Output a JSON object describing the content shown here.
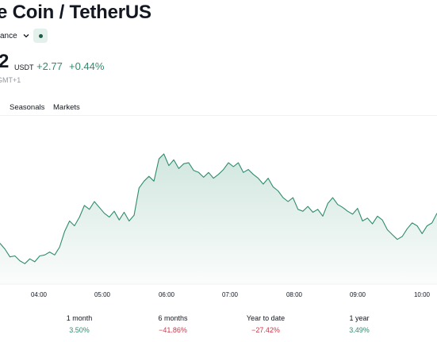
{
  "header": {
    "title": "e Coin / TetherUS",
    "exchange_label": "ance"
  },
  "quote": {
    "price": "2",
    "currency": "USDT",
    "change_abs": "+2.77",
    "change_pct": "+0.44%",
    "timezone": "GMT+1"
  },
  "tabs": [
    {
      "label": "Seasonals"
    },
    {
      "label": "Markets"
    }
  ],
  "chart_data": {
    "type": "area",
    "x_tick_labels": [
      "04:00",
      "05:00",
      "06:00",
      "07:00",
      "08:00",
      "09:00",
      "10:00"
    ],
    "series": [
      {
        "color": "#2e8c6f",
        "values": [
          642.2,
          641.6,
          640.8,
          640.9,
          640.4,
          640.1,
          640.6,
          640.3,
          640.9,
          641.0,
          641.3,
          641.0,
          641.8,
          643.4,
          644.5,
          644.0,
          644.9,
          646.1,
          645.7,
          646.5,
          645.9,
          645.3,
          644.9,
          645.5,
          644.6,
          645.4,
          644.5,
          645.1,
          647.9,
          648.6,
          649.1,
          648.6,
          650.9,
          651.4,
          650.2,
          650.8,
          649.9,
          650.4,
          650.5,
          649.7,
          649.5,
          649.0,
          649.5,
          648.9,
          649.3,
          649.8,
          650.5,
          650.1,
          650.5,
          649.5,
          649.8,
          649.3,
          648.9,
          648.3,
          648.9,
          648.0,
          647.6,
          646.9,
          646.5,
          646.9,
          645.7,
          645.5,
          646.0,
          645.4,
          645.7,
          645.0,
          646.3,
          646.9,
          646.2,
          645.9,
          645.5,
          645.2,
          645.8,
          644.5,
          644.8,
          644.2,
          645.0,
          644.6,
          643.6,
          643.1,
          642.6,
          642.9,
          643.7,
          644.3,
          644.0,
          643.2,
          644.0,
          644.3,
          645.3
        ]
      }
    ],
    "ylim": [
      638,
      655
    ],
    "grid": false
  },
  "performance": [
    {
      "label": "1 month",
      "value": "3.50%",
      "direction": "up"
    },
    {
      "label": "6 months",
      "value": "−41.86%",
      "direction": "down"
    },
    {
      "label": "Year to date",
      "value": "−27.42%",
      "direction": "down"
    },
    {
      "label": "1 year",
      "value": "3.49%",
      "direction": "up"
    }
  ],
  "colors": {
    "positive": "#2e8c6f",
    "negative": "#d0374a",
    "area_top": "#2e8c6f"
  },
  "icons": {
    "exchange_dropdown": "chevron-down-icon",
    "status_dot": "market-status-dot-icon"
  }
}
